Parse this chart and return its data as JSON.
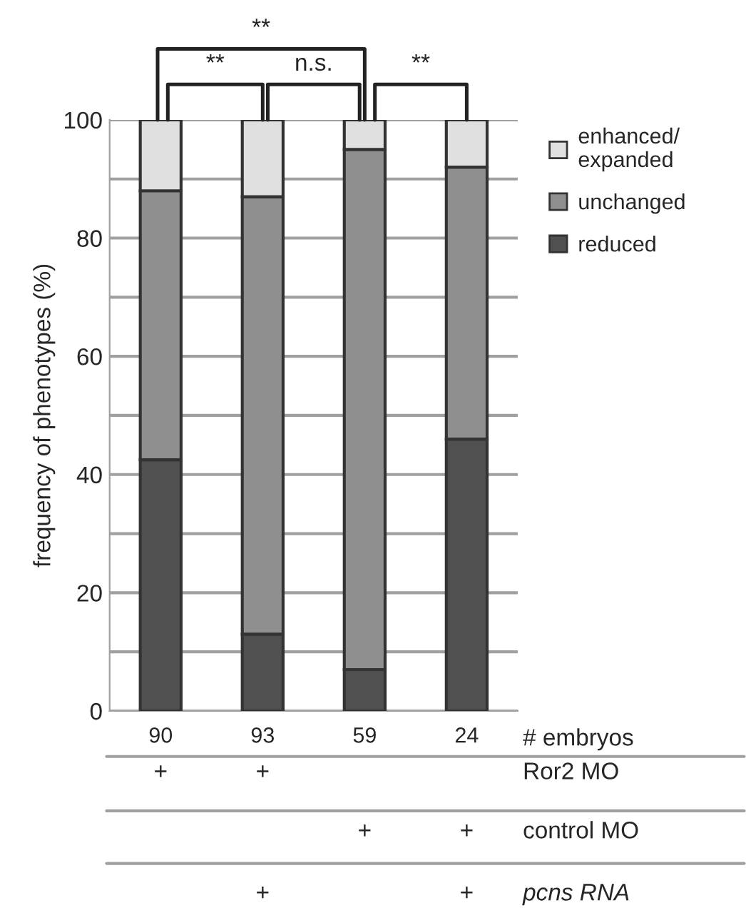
{
  "chart_data": {
    "type": "bar",
    "stacked": true,
    "ylabel": "frequency of phenotypes (%)",
    "categories": [
      "90",
      "93",
      "59",
      "24"
    ],
    "series": [
      {
        "name": "reduced",
        "color": "#505050",
        "values": [
          42.5,
          13,
          7,
          46
        ]
      },
      {
        "name": "unchanged",
        "color": "#8f8f8f",
        "values": [
          45.5,
          74,
          88,
          46
        ]
      },
      {
        "name": "enhanced/\nexpanded",
        "color": "#e0e0e0",
        "values": [
          12,
          13,
          5,
          8
        ]
      }
    ],
    "ylim": [
      0,
      100
    ],
    "yticks": [
      0,
      {
        "value": 10,
        "label": null
      },
      20,
      {
        "value": 30,
        "label": null
      },
      40,
      {
        "value": 50,
        "label": null
      },
      60,
      {
        "value": 70,
        "label": null
      },
      80,
      {
        "value": 90,
        "label": null
      },
      100
    ],
    "grid": "y",
    "legend": "top right",
    "annotations": [
      "**",
      "**",
      "n.s.",
      "**",
      "# embryos",
      "Ror2 MO",
      "control MO",
      "pcns RNA",
      "+",
      "+",
      "+",
      "+",
      "+",
      "+"
    ]
  }
}
